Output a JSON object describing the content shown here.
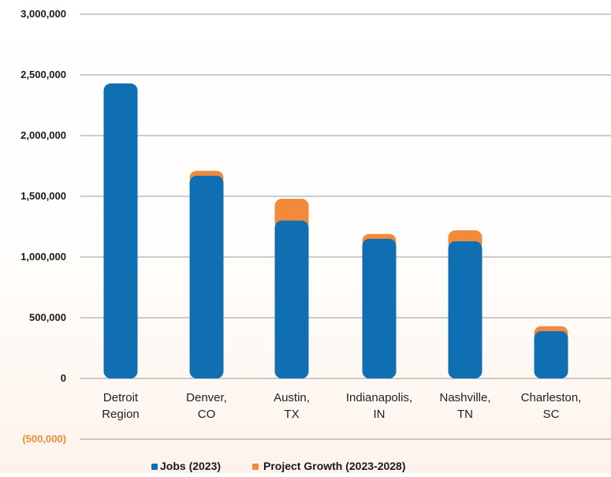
{
  "chart_data": {
    "type": "bar",
    "stacked": true,
    "categories": [
      [
        "Detroit",
        "Region"
      ],
      [
        "Denver,",
        "CO"
      ],
      [
        "Austin,",
        "TX"
      ],
      [
        "Indianapolis,",
        "IN"
      ],
      [
        "Nashville,",
        "TN"
      ],
      [
        "Charleston,",
        "SC"
      ]
    ],
    "series": [
      {
        "name": "Jobs (2023)",
        "color": "#0f6fb2",
        "values": [
          2430000,
          1670000,
          1300000,
          1150000,
          1130000,
          390000
        ]
      },
      {
        "name": "Project Growth (2023-2028)",
        "color": "#f28a3c",
        "values": [
          0,
          40000,
          180000,
          40000,
          90000,
          40000
        ]
      }
    ],
    "ylim": [
      -500000,
      3000000
    ],
    "yticks": [
      {
        "value": 3000000,
        "label": "3,000,000"
      },
      {
        "value": 2500000,
        "label": "2,500,000"
      },
      {
        "value": 2000000,
        "label": "2,000,000"
      },
      {
        "value": 1500000,
        "label": "1,500,000"
      },
      {
        "value": 1000000,
        "label": "1,000,000"
      },
      {
        "value": 500000,
        "label": "500,000"
      },
      {
        "value": 0,
        "label": "0"
      },
      {
        "value": -500000,
        "label": "(500,000)"
      }
    ],
    "grid": true,
    "legend_position": "bottom-center"
  }
}
